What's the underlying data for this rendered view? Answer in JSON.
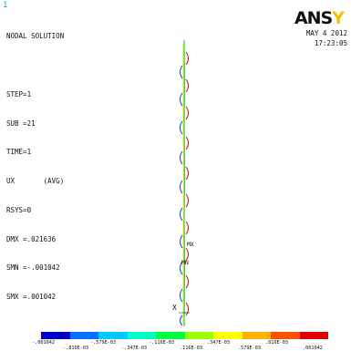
{
  "window_number": "1",
  "info_lines": [
    "NODAL SOLUTION",
    "",
    "STEP=1",
    "SUB =21",
    "TIME=1",
    "UX       (AVG)",
    "RSYS=0",
    "DMX =.021636",
    "SMN =-.001042",
    "SMX =.001042"
  ],
  "logo": {
    "part_a": "ANS",
    "part_b": "Y"
  },
  "date": "MAY  4 2012",
  "time": "17:23:05",
  "labels": {
    "mx": "MX",
    "mn": "MN",
    "axis_x": "X"
  },
  "legend": {
    "colors": [
      "#0000c8",
      "#0070ff",
      "#00c8ff",
      "#00ffc8",
      "#00ff40",
      "#9eff00",
      "#ffff00",
      "#ffb000",
      "#ff5000",
      "#e00000"
    ],
    "ticks_top": [
      "-.001042",
      "-.579E-03",
      "-.116E-03",
      ".347E-03",
      ".810E-03"
    ],
    "ticks_bottom": [
      "-.810E-03",
      "-.347E-03",
      ".116E-03",
      ".579E-03",
      ".001042"
    ]
  }
}
